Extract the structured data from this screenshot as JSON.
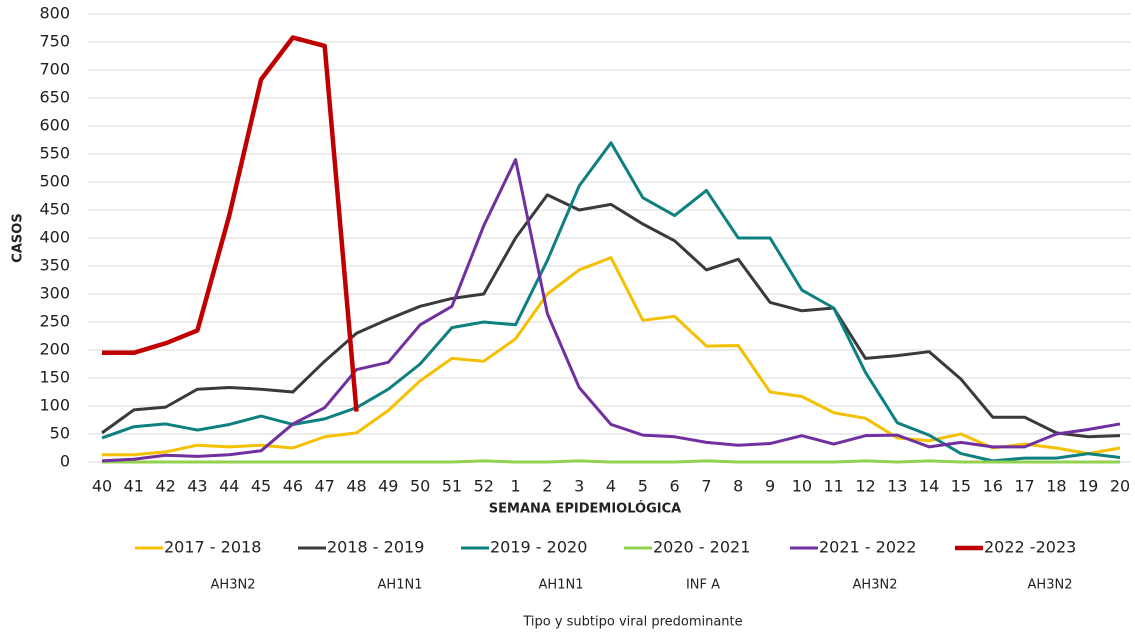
{
  "chart_data": {
    "type": "line",
    "y_label": "CASOS",
    "x_label": "SEMANA EPIDEMIOLÓGICA",
    "categories": [
      "40",
      "41",
      "42",
      "43",
      "44",
      "45",
      "46",
      "47",
      "48",
      "49",
      "50",
      "51",
      "52",
      "1",
      "2",
      "3",
      "4",
      "5",
      "6",
      "7",
      "8",
      "9",
      "10",
      "11",
      "12",
      "13",
      "14",
      "15",
      "16",
      "17",
      "18",
      "19",
      "20"
    ],
    "ylim": [
      0,
      800
    ],
    "yticks": [
      0,
      50,
      100,
      150,
      200,
      250,
      300,
      350,
      400,
      450,
      500,
      550,
      600,
      650,
      700,
      750,
      800
    ],
    "grid": true,
    "series": [
      {
        "name": "2017 - 2018",
        "color": "#f5c000",
        "values": [
          13,
          13,
          18,
          30,
          27,
          30,
          25,
          45,
          52,
          92,
          145,
          185,
          180,
          220,
          300,
          343,
          365,
          253,
          260,
          207,
          208,
          125,
          117,
          88,
          78,
          43,
          38,
          50,
          25,
          32,
          25,
          15,
          25
        ]
      },
      {
        "name": "2018 - 2019",
        "color": "#3a3a3a",
        "values": [
          52,
          93,
          98,
          130,
          133,
          130,
          125,
          180,
          230,
          255,
          278,
          292,
          300,
          400,
          477,
          450,
          460,
          425,
          395,
          343,
          362,
          285,
          270,
          275,
          185,
          190,
          197,
          148,
          80,
          80,
          52,
          45,
          47
        ]
      },
      {
        "name": "2019 - 2020",
        "color": "#0e8080",
        "values": [
          43,
          63,
          68,
          57,
          67,
          82,
          67,
          77,
          97,
          130,
          175,
          240,
          250,
          245,
          360,
          493,
          570,
          472,
          440,
          485,
          400,
          400,
          307,
          275,
          160,
          70,
          48,
          15,
          2,
          7,
          7,
          15,
          8
        ]
      },
      {
        "name": "2020 - 2021",
        "color": "#92d050",
        "values": [
          0,
          0,
          0,
          0,
          0,
          0,
          0,
          0,
          0,
          0,
          0,
          0,
          2,
          0,
          0,
          2,
          0,
          0,
          0,
          2,
          0,
          0,
          0,
          0,
          2,
          0,
          2,
          0,
          0,
          0,
          0,
          0,
          0
        ]
      },
      {
        "name": "2021 - 2022",
        "color": "#7030a0",
        "values": [
          2,
          5,
          12,
          10,
          13,
          20,
          68,
          97,
          165,
          178,
          245,
          278,
          422,
          540,
          265,
          133,
          67,
          48,
          45,
          35,
          30,
          33,
          47,
          32,
          47,
          48,
          27,
          35,
          27,
          27,
          50,
          58,
          68
        ]
      },
      {
        "name": "2022 -2023",
        "color": "#c00000",
        "values": [
          195,
          195,
          212,
          235,
          440,
          683,
          758,
          743,
          90,
          null,
          null,
          null,
          null,
          null,
          null,
          null,
          null,
          null,
          null,
          null,
          null,
          null,
          null,
          null,
          null,
          null,
          null,
          null,
          null,
          null,
          null,
          null,
          null
        ]
      }
    ],
    "annotations": [
      "AH3N2",
      "AH1N1",
      "AH1N1",
      "INF A",
      "AH3N2",
      "AH3N2"
    ],
    "footnote": "Tipo y subtipo viral predominante"
  }
}
